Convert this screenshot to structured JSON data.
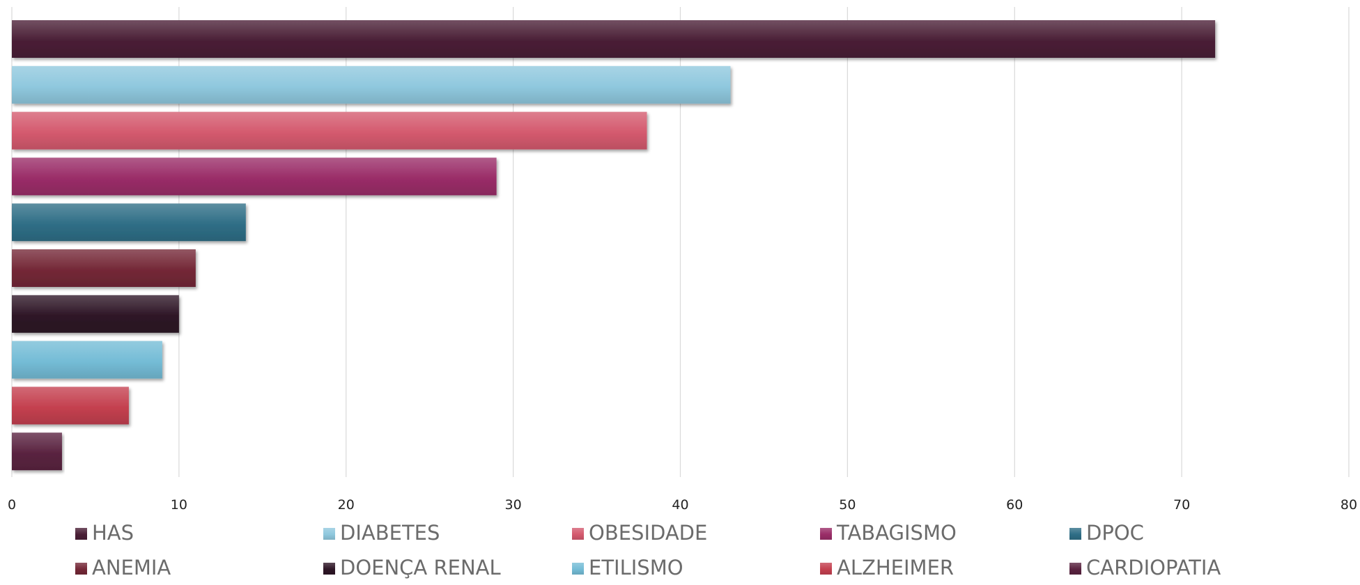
{
  "chart_data": {
    "type": "bar",
    "orientation": "horizontal",
    "title": "",
    "xlabel": "",
    "ylabel": "",
    "categories": [
      "HAS",
      "DIABETES",
      "OBESIDADE",
      "TABAGISMO",
      "DPOC",
      "ANEMIA",
      "DOENÇA RENAL",
      "ETILISMO",
      "ALZHEIMER",
      "CARDIOPATIA"
    ],
    "values": [
      72,
      43,
      38,
      29,
      14,
      11,
      10,
      9,
      7,
      3
    ],
    "colors": [
      "#4a1f36",
      "#8fc8de",
      "#d45a6e",
      "#9a2d68",
      "#2f6e86",
      "#742837",
      "#2e1626",
      "#74bcd6",
      "#c4404f",
      "#5a2340"
    ],
    "xlim": [
      0,
      80
    ],
    "xticks": [
      0,
      10,
      20,
      30,
      40,
      50,
      60,
      70,
      80
    ],
    "grid": true,
    "legend_position": "bottom"
  }
}
